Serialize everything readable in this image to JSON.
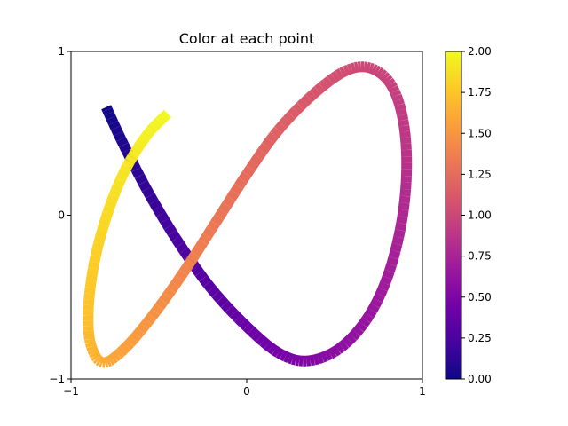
{
  "chart_data": {
    "type": "line",
    "title": "Color at each point",
    "xlabel": "",
    "ylabel": "",
    "xlim": [
      -1,
      1
    ],
    "ylim": [
      -1,
      1
    ],
    "xticks": [
      -1,
      0,
      1
    ],
    "xtick_labels": [
      "−1",
      "0",
      "1"
    ],
    "yticks": [
      -1,
      0,
      1
    ],
    "ytick_labels": [
      "−1",
      "0",
      "1"
    ],
    "grid": false,
    "colormap": "plasma",
    "color_range": [
      0.0,
      2.0
    ],
    "curve": {
      "description_of_data": "parametric curve x = 0.9 sin(t), y = 0.9 sin(t·φ+π/2 shift) colored by value c",
      "points": [
        {
          "x": -0.8,
          "y": 0.66,
          "c": 0.0
        },
        {
          "x": -0.7,
          "y": 0.43,
          "c": 0.07
        },
        {
          "x": -0.55,
          "y": 0.12,
          "c": 0.16
        },
        {
          "x": -0.38,
          "y": -0.18,
          "c": 0.25
        },
        {
          "x": -0.2,
          "y": -0.45,
          "c": 0.32
        },
        {
          "x": 0.0,
          "y": -0.68,
          "c": 0.4
        },
        {
          "x": 0.18,
          "y": -0.84,
          "c": 0.46
        },
        {
          "x": 0.34,
          "y": -0.89,
          "c": 0.52
        },
        {
          "x": 0.52,
          "y": -0.82,
          "c": 0.58
        },
        {
          "x": 0.68,
          "y": -0.64,
          "c": 0.64
        },
        {
          "x": 0.8,
          "y": -0.38,
          "c": 0.7
        },
        {
          "x": 0.88,
          "y": -0.05,
          "c": 0.77
        },
        {
          "x": 0.91,
          "y": 0.28,
          "c": 0.84
        },
        {
          "x": 0.89,
          "y": 0.58,
          "c": 0.91
        },
        {
          "x": 0.82,
          "y": 0.8,
          "c": 0.96
        },
        {
          "x": 0.7,
          "y": 0.9,
          "c": 1.0
        },
        {
          "x": 0.56,
          "y": 0.88,
          "c": 1.04
        },
        {
          "x": 0.38,
          "y": 0.74,
          "c": 1.1
        },
        {
          "x": 0.18,
          "y": 0.52,
          "c": 1.17
        },
        {
          "x": 0.0,
          "y": 0.25,
          "c": 1.24
        },
        {
          "x": -0.18,
          "y": -0.05,
          "c": 1.32
        },
        {
          "x": -0.36,
          "y": -0.35,
          "c": 1.4
        },
        {
          "x": -0.54,
          "y": -0.62,
          "c": 1.48
        },
        {
          "x": -0.7,
          "y": -0.82,
          "c": 1.56
        },
        {
          "x": -0.82,
          "y": -0.9,
          "c": 1.62
        },
        {
          "x": -0.89,
          "y": -0.78,
          "c": 1.68
        },
        {
          "x": -0.9,
          "y": -0.55,
          "c": 1.74
        },
        {
          "x": -0.86,
          "y": -0.25,
          "c": 1.8
        },
        {
          "x": -0.78,
          "y": 0.05,
          "c": 1.86
        },
        {
          "x": -0.68,
          "y": 0.3,
          "c": 1.91
        },
        {
          "x": -0.56,
          "y": 0.5,
          "c": 1.96
        },
        {
          "x": -0.45,
          "y": 0.62,
          "c": 2.0
        }
      ]
    },
    "colorbar": {
      "ticks": [
        0.0,
        0.25,
        0.5,
        0.75,
        1.0,
        1.25,
        1.5,
        1.75,
        2.0
      ],
      "tick_labels": [
        "0.00",
        "0.25",
        "0.50",
        "0.75",
        "1.00",
        "1.25",
        "1.50",
        "1.75",
        "2.00"
      ],
      "colors": [
        "#0d0887",
        "#46039f",
        "#7201a8",
        "#9c179e",
        "#bd3786",
        "#d8576b",
        "#ed7953",
        "#fb9f3a",
        "#fdca26",
        "#f0f921"
      ]
    }
  }
}
